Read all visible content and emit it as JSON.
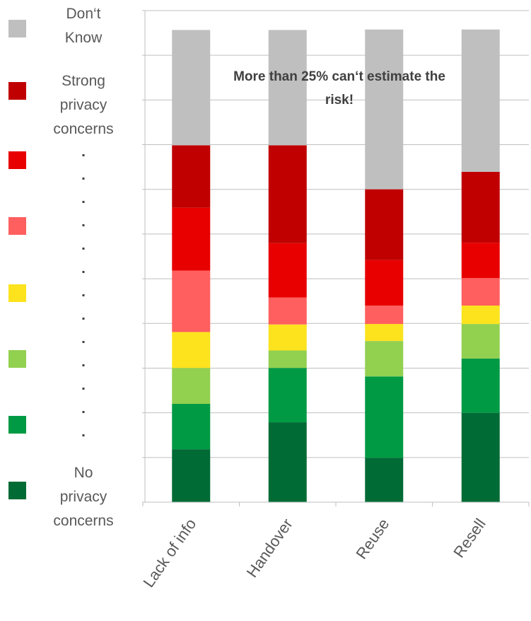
{
  "chart_data": {
    "type": "stacked_bar",
    "annotation": "More than 25% can‘t estimate the risk!",
    "categories": [
      "Lack of info",
      "Handover",
      "Reuse",
      "Resell"
    ],
    "series": [
      {
        "name": "No privacy concerns",
        "color": "#006b35",
        "values": [
          11.2,
          16.9,
          9.4,
          18.9
        ]
      },
      {
        "name": null,
        "color": "#009a44",
        "values": [
          9.6,
          11.5,
          17.2,
          11.5
        ]
      },
      {
        "name": null,
        "color": "#92d050",
        "values": [
          7.6,
          3.7,
          7.5,
          7.3
        ]
      },
      {
        "name": null,
        "color": "#fce31e",
        "values": [
          7.6,
          5.5,
          3.6,
          3.9
        ]
      },
      {
        "name": null,
        "color": "#ff5f5f",
        "values": [
          13.0,
          5.7,
          3.9,
          5.8
        ]
      },
      {
        "name": null,
        "color": "#e80000",
        "values": [
          13.3,
          11.5,
          9.6,
          7.5
        ]
      },
      {
        "name": "Strong privacy concerns",
        "color": "#c00000",
        "values": [
          13.2,
          20.7,
          15.0,
          15.0
        ]
      },
      {
        "name": "Don‘t Know",
        "color": "#bfbfbf",
        "values": [
          24.4,
          24.4,
          33.8,
          30.1
        ]
      }
    ],
    "ylim": [
      0,
      104
    ],
    "grid": true
  }
}
